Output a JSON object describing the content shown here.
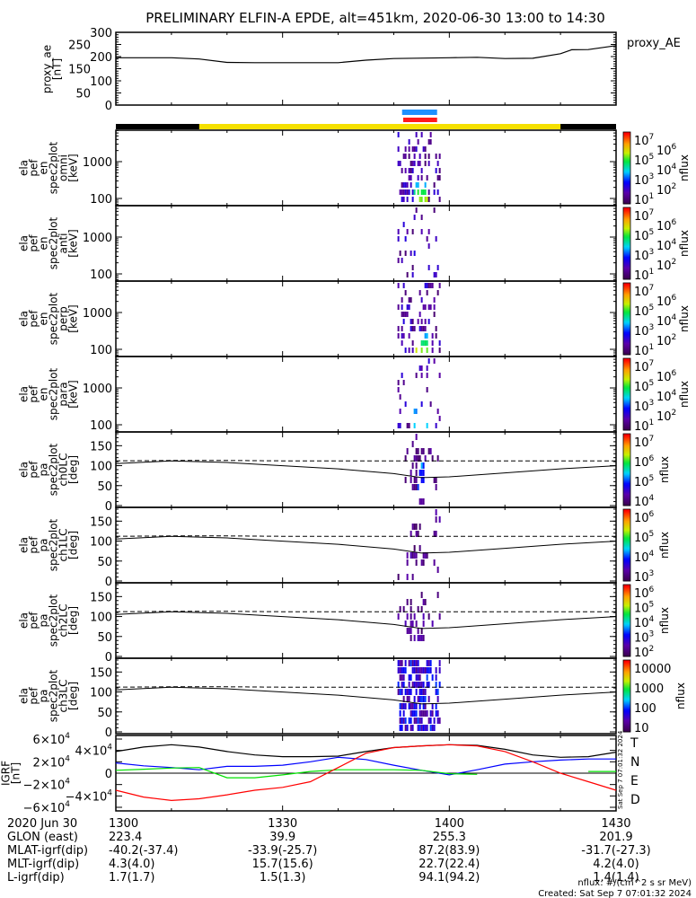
{
  "title": "PRELIMINARY ELFIN-A EPDE, alt=451km, 2020-06-30 13:00 to 14:30",
  "colors": {
    "orbit_dark": "#000000",
    "orbit_sun": "#f5e000",
    "bar_blue": "#1e90ff",
    "bar_red": "#ff1a1a",
    "T": "#000000",
    "N": "#0000ff",
    "E": "#00e000",
    "D": "#ff0000"
  },
  "chart_data": [
    {
      "type": "line",
      "name": "proxy_ae",
      "ylabel": [
        "proxy_ae",
        "[nT]"
      ],
      "legend": "proxy_AE",
      "ylim": [
        0,
        300
      ],
      "yticks": [
        "300",
        "250",
        "200",
        "150",
        "100",
        "50",
        "0"
      ],
      "x_minutes": [
        0,
        10,
        15,
        20,
        25,
        30,
        40,
        45,
        50,
        60,
        65,
        70,
        75,
        80,
        82,
        85,
        90
      ],
      "values": [
        195,
        195,
        190,
        176,
        175,
        175,
        175,
        185,
        192,
        195,
        197,
        192,
        193,
        212,
        228,
        229,
        245
      ]
    },
    {
      "type": "heatmap",
      "panels": [
        {
          "ylabel": [
            "ela",
            "pef",
            "en",
            "spec2plot",
            "omni",
            "[keV]"
          ],
          "yticks": [
            "1000",
            "100"
          ],
          "cbar": [
            [
              "10",
              "7"
            ],
            [
              "10",
              "6"
            ],
            [
              "10",
              "5"
            ],
            [
              "10",
              "4"
            ],
            [
              "10",
              "3"
            ],
            [
              "10",
              "2"
            ],
            [
              "10",
              "1"
            ]
          ],
          "cbar_range": [
            1,
            7
          ],
          "zlabel": "nflux"
        },
        {
          "ylabel": [
            "ela",
            "pef",
            "en",
            "spec2plot",
            "anti",
            "[keV]"
          ],
          "yticks": [
            "1000",
            "100"
          ],
          "cbar": [
            [
              "10",
              "7"
            ],
            [
              "10",
              "6"
            ],
            [
              "10",
              "5"
            ],
            [
              "10",
              "4"
            ],
            [
              "10",
              "3"
            ],
            [
              "10",
              "2"
            ],
            [
              "10",
              "1"
            ]
          ],
          "cbar_range": [
            1,
            7
          ],
          "zlabel": "nflux"
        },
        {
          "ylabel": [
            "ela",
            "pef",
            "en",
            "spec2plot",
            "perp",
            "[keV]"
          ],
          "yticks": [
            "1000",
            "100"
          ],
          "cbar": [
            [
              "10",
              "7"
            ],
            [
              "10",
              "6"
            ],
            [
              "10",
              "5"
            ],
            [
              "10",
              "4"
            ],
            [
              "10",
              "3"
            ],
            [
              "10",
              "2"
            ],
            [
              "10",
              "1"
            ]
          ],
          "cbar_range": [
            1,
            7
          ],
          "zlabel": "nflux"
        },
        {
          "ylabel": [
            "ela",
            "pef",
            "en",
            "spec2plot",
            "para",
            "[keV]"
          ],
          "yticks": [
            "1000",
            "100"
          ],
          "cbar": [
            [
              "10",
              "7"
            ],
            [
              "10",
              "6"
            ],
            [
              "10",
              "5"
            ],
            [
              "10",
              "4"
            ],
            [
              "10",
              "3"
            ],
            [
              "10",
              "2"
            ],
            [
              "10",
              "1"
            ]
          ],
          "cbar_range": [
            1,
            7
          ],
          "zlabel": "nflux"
        },
        {
          "ylabel": [
            "ela",
            "pef",
            "pa",
            "spec2plot",
            "ch0LC",
            "[deg]"
          ],
          "yticks": [
            "150",
            "100",
            "50",
            "0"
          ],
          "cbar": [
            [
              "10",
              "7"
            ],
            [
              "10",
              "6"
            ],
            [
              "10",
              "5"
            ],
            [
              "10",
              "4"
            ]
          ],
          "cbar_range": [
            3.5,
            7.1
          ],
          "zlabel": "nflux"
        },
        {
          "ylabel": [
            "ela",
            "pef",
            "pa",
            "spec2plot",
            "ch1LC",
            "[deg]"
          ],
          "yticks": [
            "150",
            "100",
            "50",
            "0"
          ],
          "cbar": [
            [
              "10",
              "6"
            ],
            [
              "10",
              "5"
            ],
            [
              "10",
              "4"
            ],
            [
              "10",
              "3"
            ]
          ],
          "cbar_range": [
            2.9,
            6.5
          ],
          "zlabel": "nflux"
        },
        {
          "ylabel": [
            "ela",
            "pef",
            "pa",
            "spec2plot",
            "ch2LC",
            "[deg]"
          ],
          "yticks": [
            "150",
            "100",
            "50",
            "0"
          ],
          "cbar": [
            [
              "10",
              "6"
            ],
            [
              "10",
              "5"
            ],
            [
              "10",
              "4"
            ],
            [
              "10",
              "3"
            ],
            [
              "10",
              "2"
            ]
          ],
          "cbar_range": [
            1.8,
            6.1
          ],
          "zlabel": "nflux"
        },
        {
          "ylabel": [
            "ela",
            "pef",
            "pa",
            "spec2plot",
            "ch3LC",
            "[deg]"
          ],
          "yticks": [
            "150",
            "100",
            "50",
            "0"
          ],
          "cbar": [
            [
              "10000",
              ""
            ],
            [
              "1000",
              ""
            ],
            [
              "100",
              ""
            ],
            [
              "10",
              ""
            ]
          ],
          "cbar_range": [
            1,
            4.3
          ],
          "zlabel": "nflux"
        }
      ],
      "burst_time_minutes": [
        51,
        58
      ]
    },
    {
      "type": "line",
      "name": "IGRF",
      "ylabel": [
        "IGRF",
        "[nT]"
      ],
      "ylim": [
        -60000,
        60000
      ],
      "yticks": [
        [
          "6×10",
          "4"
        ],
        [
          "4×10",
          "4"
        ],
        [
          "2×10",
          "4"
        ],
        [
          "0",
          ""
        ],
        [
          "−2×10",
          "4"
        ],
        [
          "−4×10",
          "4"
        ],
        [
          "−6×10",
          "4"
        ]
      ],
      "x_minutes": [
        0,
        5,
        10,
        15,
        20,
        25,
        30,
        35,
        40,
        45,
        50,
        55,
        60,
        65,
        70,
        75,
        80,
        85,
        90
      ],
      "series": [
        {
          "name": "T",
          "values": [
            38000,
            46000,
            50000,
            46000,
            38000,
            32000,
            29000,
            29000,
            30000,
            38000,
            45000,
            48000,
            50000,
            49000,
            42000,
            32000,
            28000,
            29000,
            37000
          ]
        },
        {
          "name": "N",
          "values": [
            18000,
            13000,
            10000,
            6000,
            12000,
            12000,
            14000,
            20000,
            28000,
            24000,
            14000,
            5000,
            -3000,
            6000,
            16000,
            20000,
            23000,
            25000,
            25000
          ]
        },
        {
          "name": "E",
          "values": [
            5000,
            7000,
            9000,
            10000,
            -8000,
            -8000,
            -3000,
            3000,
            6000,
            6000,
            6000,
            5000,
            -1000,
            -2000,
            null,
            null,
            null,
            3000,
            3000
          ]
        },
        {
          "name": "D",
          "values": [
            -30000,
            -42000,
            -48000,
            -45000,
            -38000,
            -30000,
            -25000,
            -15000,
            10000,
            35000,
            45000,
            48000,
            50000,
            48000,
            38000,
            20000,
            0,
            -15000,
            -30000
          ]
        }
      ]
    }
  ],
  "orbit_bar": {
    "sun_start_min": 15,
    "sun_end_min": 80
  },
  "science_bars": {
    "blue": [
      51.5,
      57.8
    ],
    "red": [
      51.7,
      57.8
    ]
  },
  "bottom": {
    "rows": [
      {
        "label": "2020 Jun 30",
        "values": [
          "1300",
          "1330",
          "1400",
          "1430"
        ]
      },
      {
        "label": "GLON (east)",
        "values": [
          "223.4",
          "39.9",
          "255.3",
          "201.9"
        ]
      },
      {
        "label": "MLAT-igrf(dip)",
        "values": [
          "-40.2(-37.4)",
          "-33.9(-25.7)",
          "87.2(83.9)",
          "-31.7(-27.3)"
        ]
      },
      {
        "label": "MLT-igrf(dip)",
        "values": [
          "4.3(4.0)",
          "15.7(15.6)",
          "22.7(22.4)",
          "4.2(4.0)"
        ]
      },
      {
        "label": "L-igrf(dip)",
        "values": [
          "1.7(1.7)",
          "1.5(1.3)",
          "94.1(94.2)",
          "1.4(1.4)"
        ]
      }
    ],
    "units_note": "nflux: #/(cm^2 s sr MeV)",
    "created": "Created: Sat Sep  7 07:01:32 2024",
    "side_stamp": "Sat Sep  7 07:01:32 2024"
  }
}
